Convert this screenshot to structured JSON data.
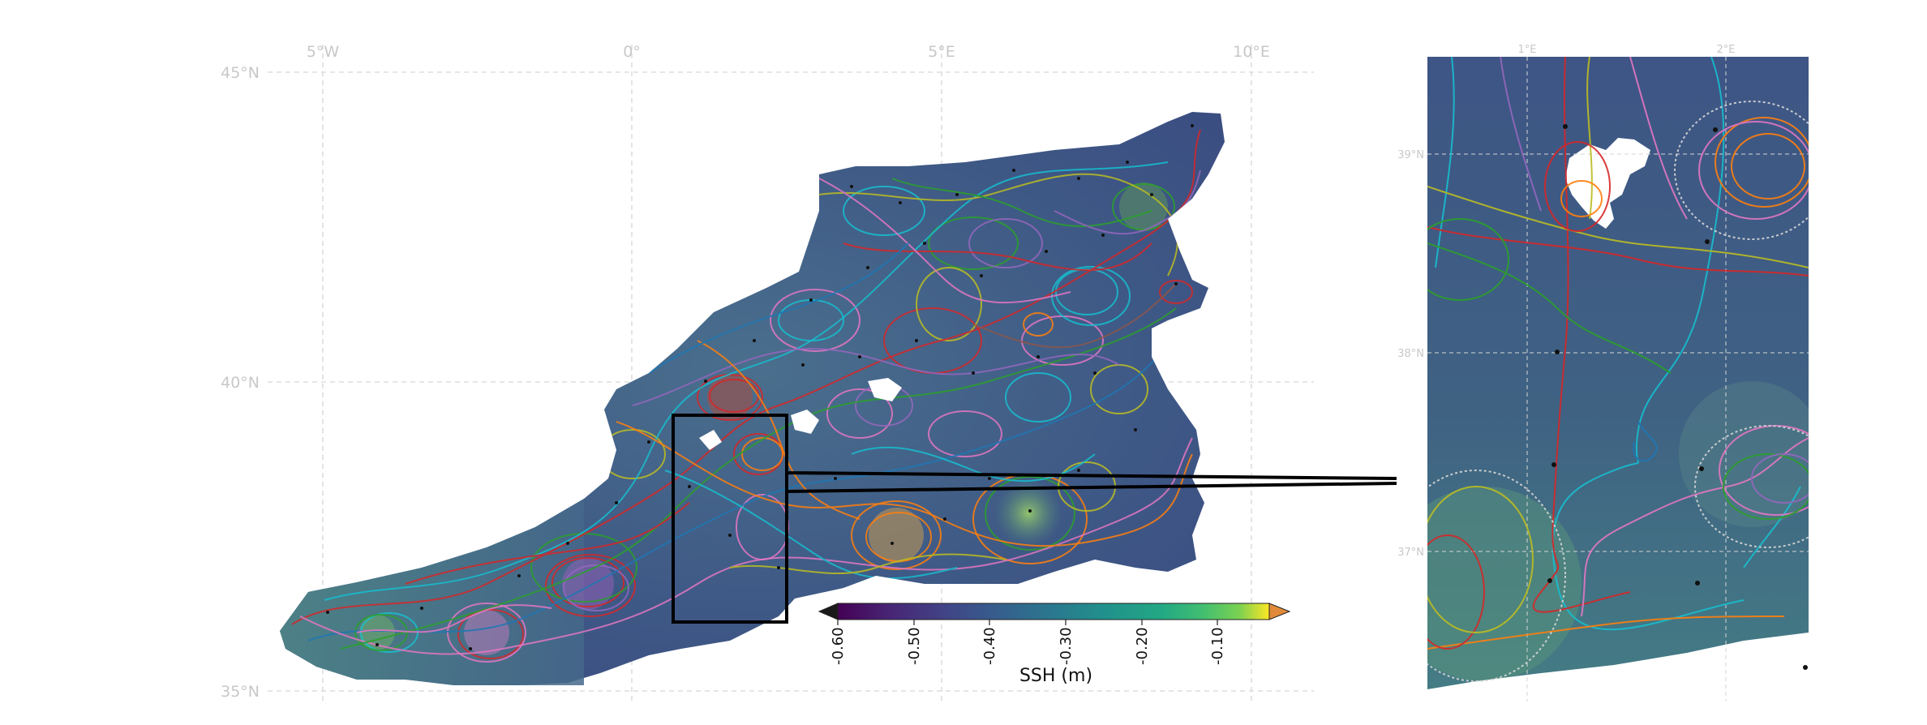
{
  "main_map": {
    "lon_labels": [
      "5°W",
      "0°",
      "5°E",
      "10°E"
    ],
    "lat_labels": [
      "45°N",
      "40°N",
      "35°N"
    ]
  },
  "inset_map": {
    "lon_labels": [
      "1°E",
      "2°E"
    ],
    "lat_labels": [
      "39°N",
      "38°N",
      "37°N"
    ]
  },
  "colorbar": {
    "label": "SSH (m)",
    "ticks": [
      "-0.60",
      "-0.50",
      "-0.40",
      "-0.30",
      "-0.20",
      "-0.10"
    ],
    "colormap": "viridis",
    "extend": "both",
    "over_color": "#e08a3a",
    "under_color": "#1a1a1a"
  },
  "colors": {
    "sea_background": "#3f5f80",
    "land": "#ffffff",
    "gridline": "#d6d6d6",
    "trajectory_palette": [
      "#d62728",
      "#1f77b4",
      "#2ca02c",
      "#ff7f0e",
      "#9467bd",
      "#e377c2",
      "#17becf",
      "#bcbd22",
      "#8c564b"
    ]
  }
}
